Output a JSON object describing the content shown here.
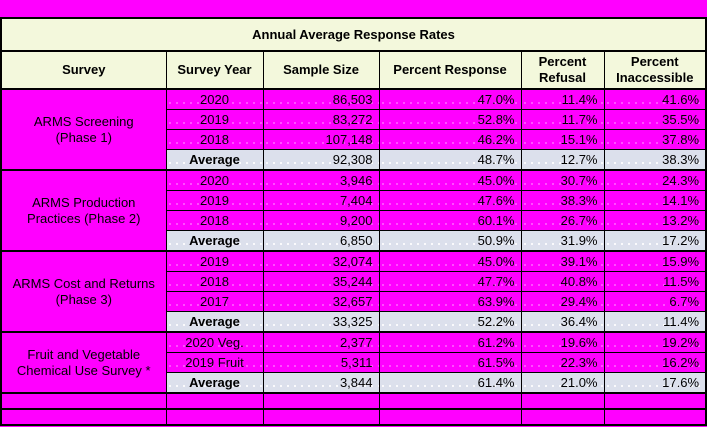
{
  "title": "Annual Average Response Rates",
  "columns": [
    "Survey",
    "Survey Year",
    "Sample Size",
    "Percent Response",
    "Percent Refusal",
    "Percent Inaccessible"
  ],
  "colors": {
    "cell_fill_magenta": "#FF00FF",
    "header_fill_cream": "#F3F8DC",
    "average_row_fill": "#DCE0EC",
    "border_black": "#000000"
  },
  "sections": [
    {
      "survey_lines": [
        "ARMS Screening",
        "(Phase 1)"
      ],
      "rows": [
        {
          "year": "2020",
          "sample": "86,503",
          "response": "47.0%",
          "refusal": "11.4%",
          "inaccessible": "41.6%"
        },
        {
          "year": "2019",
          "sample": "83,272",
          "response": "52.8%",
          "refusal": "11.7%",
          "inaccessible": "35.5%"
        },
        {
          "year": "2018",
          "sample": "107,148",
          "response": "46.2%",
          "refusal": "15.1%",
          "inaccessible": "37.8%"
        }
      ],
      "average": {
        "label": "Average",
        "sample": "92,308",
        "response": "48.7%",
        "refusal": "12.7%",
        "inaccessible": "38.3%"
      }
    },
    {
      "survey_lines": [
        "ARMS Production",
        "Practices (Phase 2)"
      ],
      "rows": [
        {
          "year": "2020",
          "sample": "3,946",
          "response": "45.0%",
          "refusal": "30.7%",
          "inaccessible": "24.3%"
        },
        {
          "year": "2019",
          "sample": "7,404",
          "response": "47.6%",
          "refusal": "38.3%",
          "inaccessible": "14.1%"
        },
        {
          "year": "2018",
          "sample": "9,200",
          "response": "60.1%",
          "refusal": "26.7%",
          "inaccessible": "13.2%"
        }
      ],
      "average": {
        "label": "Average",
        "sample": "6,850",
        "response": "50.9%",
        "refusal": "31.9%",
        "inaccessible": "17.2%"
      }
    },
    {
      "survey_lines": [
        "ARMS Cost and Returns",
        "(Phase 3)"
      ],
      "rows": [
        {
          "year": "2019",
          "sample": "32,074",
          "response": "45.0%",
          "refusal": "39.1%",
          "inaccessible": "15.9%"
        },
        {
          "year": "2018",
          "sample": "35,244",
          "response": "47.7%",
          "refusal": "40.8%",
          "inaccessible": "11.5%"
        },
        {
          "year": "2017",
          "sample": "32,657",
          "response": "63.9%",
          "refusal": "29.4%",
          "inaccessible": "6.7%"
        }
      ],
      "average": {
        "label": "Average",
        "sample": "33,325",
        "response": "52.2%",
        "refusal": "36.4%",
        "inaccessible": "11.4%"
      }
    },
    {
      "survey_lines": [
        "Fruit and Vegetable",
        "Chemical Use Survey *"
      ],
      "rows": [
        {
          "year": "2020 Veg.",
          "sample": "2,377",
          "response": "61.2%",
          "refusal": "19.6%",
          "inaccessible": "19.2%"
        },
        {
          "year": "2019 Fruit",
          "sample": "5,311",
          "response": "61.5%",
          "refusal": "22.3%",
          "inaccessible": "16.2%"
        }
      ],
      "average": {
        "label": "Average",
        "sample": "3,844",
        "response": "61.4%",
        "refusal": "21.0%",
        "inaccessible": "17.6%"
      }
    }
  ],
  "empty_row_count": 2
}
